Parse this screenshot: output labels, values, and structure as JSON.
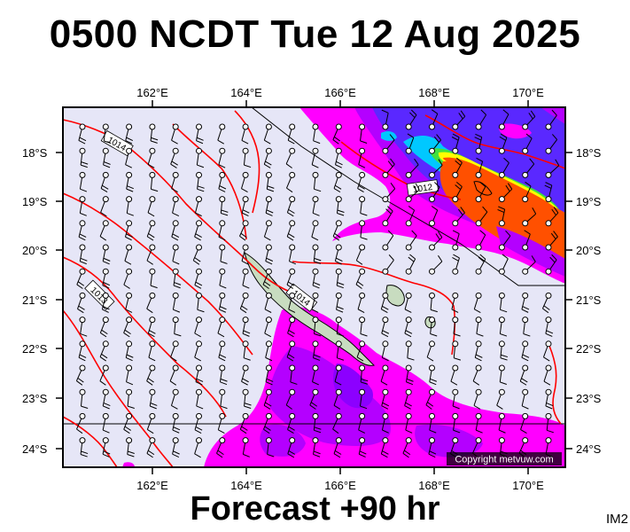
{
  "title": "0500 NCDT Tue 12 Aug 2025",
  "footer": "Forecast +90 hr",
  "image_code": "IM2",
  "copyright": "Copyright metvuw.com",
  "map": {
    "lon_ticks": [
      "162°E",
      "164°E",
      "166°E",
      "168°E",
      "170°E"
    ],
    "lat_ticks": [
      "18°S",
      "19°S",
      "20°S",
      "21°S",
      "22°S",
      "23°S",
      "24°S"
    ],
    "isobar_labels": [
      "1014",
      "1012",
      "1014",
      "1013"
    ]
  },
  "colors": {
    "background": "#e6e6f7",
    "rain_light": "#ff00ff",
    "rain_moderate": "#b400ff",
    "rain_heavy": "#5a28ff",
    "rain_cyan": "#00c8ff",
    "rain_green": "#40e040",
    "rain_yellow": "#ffff00",
    "rain_orange": "#ff5000",
    "isobar": "#ff0000",
    "land": "#c8dcc0"
  }
}
